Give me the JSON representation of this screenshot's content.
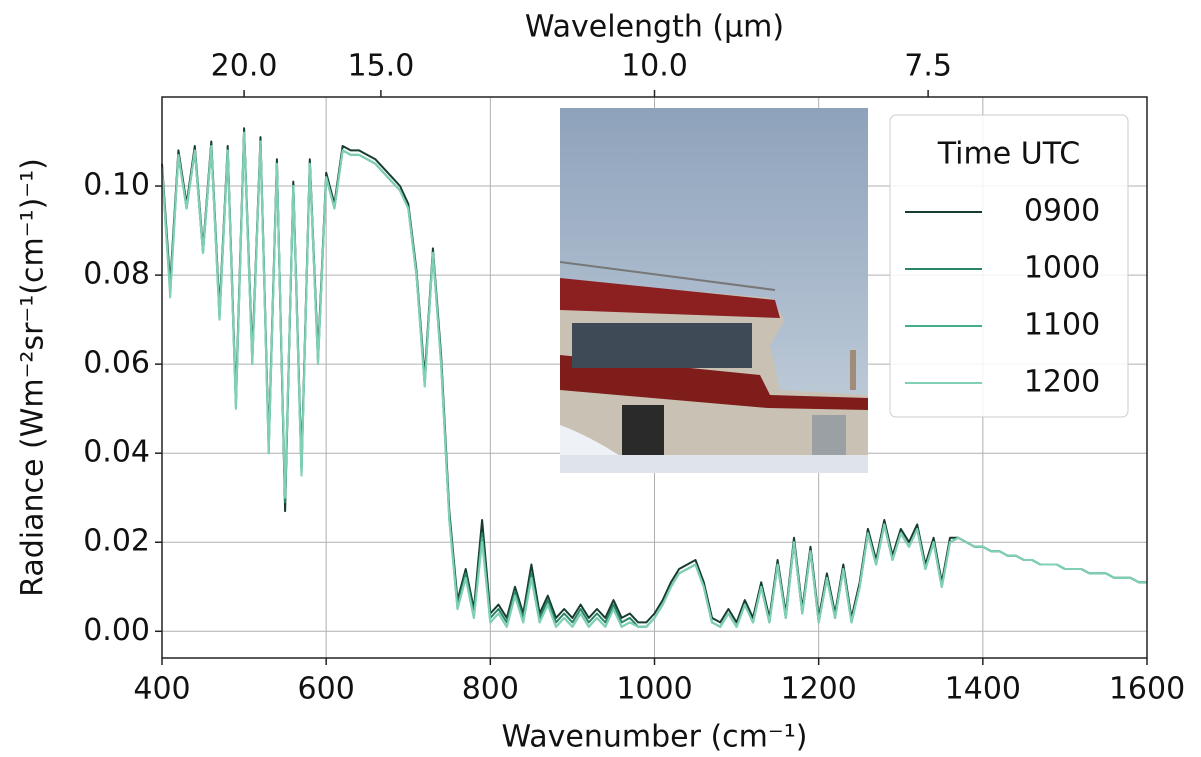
{
  "chart_data": {
    "type": "line",
    "xlabel": "Wavenumber (cm⁻¹)",
    "ylabel": "Radiance (Wm⁻²sr⁻¹(cm⁻¹)⁻¹)",
    "x2label": "Wavelength (μm)",
    "x2_scale": "reciprocal",
    "legend_title": "Time UTC",
    "legend": "upper right",
    "grid": true,
    "xlim": [
      400,
      1600
    ],
    "xticks": [
      400,
      600,
      800,
      1000,
      1200,
      1400,
      1600
    ],
    "x2lim": [
      25,
      6.25
    ],
    "x2ticks": [
      {
        "value": 20,
        "label": "20.0"
      },
      {
        "value": 15,
        "label": "15.0"
      },
      {
        "value": 10,
        "label": "10.0"
      },
      {
        "value": 7.5,
        "label": "7.5"
      }
    ],
    "ylim": [
      -0.006,
      0.12
    ],
    "yticks": [
      {
        "value": 0,
        "label": "0.00"
      },
      {
        "value": 0.02,
        "label": "0.02"
      },
      {
        "value": 0.04,
        "label": "0.04"
      },
      {
        "value": 0.06,
        "label": "0.06"
      },
      {
        "value": 0.08,
        "label": "0.08"
      },
      {
        "value": 0.1,
        "label": "0.10"
      }
    ],
    "x": [
      400,
      410,
      420,
      430,
      440,
      450,
      460,
      470,
      480,
      490,
      500,
      510,
      520,
      530,
      540,
      550,
      560,
      570,
      580,
      590,
      600,
      610,
      620,
      630,
      640,
      650,
      660,
      670,
      680,
      690,
      700,
      710,
      720,
      730,
      740,
      750,
      760,
      770,
      780,
      790,
      800,
      810,
      820,
      830,
      840,
      850,
      860,
      870,
      880,
      890,
      900,
      910,
      920,
      930,
      940,
      950,
      960,
      970,
      980,
      990,
      1000,
      1010,
      1020,
      1030,
      1040,
      1050,
      1060,
      1070,
      1080,
      1090,
      1100,
      1110,
      1120,
      1130,
      1140,
      1150,
      1160,
      1170,
      1180,
      1190,
      1200,
      1210,
      1220,
      1230,
      1240,
      1250,
      1260,
      1270,
      1280,
      1290,
      1300,
      1310,
      1320,
      1330,
      1340,
      1350,
      1360,
      1370,
      1380,
      1390,
      1400,
      1410,
      1420,
      1430,
      1440,
      1450,
      1460,
      1470,
      1480,
      1490,
      1500,
      1510,
      1520,
      1530,
      1540,
      1550,
      1560,
      1570,
      1580,
      1590,
      1600
    ],
    "series": [
      {
        "name": "0900",
        "color": "#173d31",
        "values": [
          0.105,
          0.078,
          0.108,
          0.096,
          0.109,
          0.086,
          0.11,
          0.072,
          0.109,
          0.052,
          0.113,
          0.062,
          0.111,
          0.042,
          0.106,
          0.027,
          0.101,
          0.037,
          0.106,
          0.062,
          0.103,
          0.096,
          0.109,
          0.108,
          0.108,
          0.107,
          0.106,
          0.104,
          0.102,
          0.1,
          0.096,
          0.081,
          0.057,
          0.086,
          0.062,
          0.027,
          0.007,
          0.014,
          0.005,
          0.025,
          0.004,
          0.006,
          0.003,
          0.01,
          0.004,
          0.015,
          0.004,
          0.008,
          0.003,
          0.005,
          0.003,
          0.006,
          0.003,
          0.005,
          0.003,
          0.007,
          0.003,
          0.004,
          0.002,
          0.002,
          0.004,
          0.007,
          0.011,
          0.014,
          0.015,
          0.016,
          0.011,
          0.003,
          0.002,
          0.005,
          0.002,
          0.007,
          0.003,
          0.011,
          0.003,
          0.016,
          0.004,
          0.021,
          0.005,
          0.019,
          0.003,
          0.013,
          0.004,
          0.015,
          0.003,
          0.011,
          0.023,
          0.016,
          0.025,
          0.017,
          0.023,
          0.02,
          0.024,
          0.015,
          0.021,
          0.011,
          0.021,
          0.021,
          0.02,
          0.019,
          0.019,
          0.018,
          0.018,
          0.017,
          0.017,
          0.016,
          0.016,
          0.015,
          0.015,
          0.015,
          0.014,
          0.014,
          0.014,
          0.013,
          0.013,
          0.013,
          0.012,
          0.012,
          0.012,
          0.011,
          0.011
        ]
      },
      {
        "name": "1000",
        "color": "#2a8466",
        "values": [
          0.104,
          0.077,
          0.107,
          0.095,
          0.108,
          0.085,
          0.109,
          0.071,
          0.108,
          0.051,
          0.112,
          0.061,
          0.11,
          0.041,
          0.105,
          0.029,
          0.1,
          0.036,
          0.105,
          0.061,
          0.102,
          0.095,
          0.108,
          0.107,
          0.107,
          0.106,
          0.105,
          0.103,
          0.101,
          0.099,
          0.095,
          0.08,
          0.056,
          0.085,
          0.061,
          0.026,
          0.006,
          0.013,
          0.004,
          0.022,
          0.003,
          0.005,
          0.002,
          0.009,
          0.003,
          0.013,
          0.003,
          0.007,
          0.002,
          0.004,
          0.002,
          0.005,
          0.002,
          0.004,
          0.002,
          0.006,
          0.002,
          0.003,
          0.001,
          0.001,
          0.003,
          0.006,
          0.01,
          0.013,
          0.014,
          0.015,
          0.01,
          0.002,
          0.001,
          0.004,
          0.001,
          0.006,
          0.002,
          0.01,
          0.002,
          0.015,
          0.003,
          0.02,
          0.004,
          0.018,
          0.002,
          0.012,
          0.003,
          0.014,
          0.002,
          0.01,
          0.022,
          0.015,
          0.024,
          0.016,
          0.022,
          0.019,
          0.023,
          0.014,
          0.02,
          0.01,
          0.02,
          0.021,
          0.02,
          0.019,
          0.019,
          0.018,
          0.018,
          0.017,
          0.017,
          0.016,
          0.016,
          0.015,
          0.015,
          0.015,
          0.014,
          0.014,
          0.014,
          0.013,
          0.013,
          0.013,
          0.012,
          0.012,
          0.012,
          0.011,
          0.011
        ]
      },
      {
        "name": "1100",
        "color": "#45ad87",
        "values": [
          0.104,
          0.076,
          0.107,
          0.095,
          0.108,
          0.085,
          0.109,
          0.07,
          0.108,
          0.05,
          0.112,
          0.06,
          0.11,
          0.04,
          0.105,
          0.03,
          0.1,
          0.035,
          0.105,
          0.06,
          0.102,
          0.095,
          0.108,
          0.107,
          0.107,
          0.106,
          0.105,
          0.103,
          0.101,
          0.099,
          0.095,
          0.08,
          0.055,
          0.085,
          0.06,
          0.025,
          0.005,
          0.012,
          0.003,
          0.021,
          0.002,
          0.004,
          0.001,
          0.008,
          0.002,
          0.012,
          0.002,
          0.006,
          0.001,
          0.003,
          0.001,
          0.004,
          0.001,
          0.003,
          0.001,
          0.005,
          0.001,
          0.002,
          0.001,
          0.001,
          0.003,
          0.006,
          0.01,
          0.013,
          0.014,
          0.015,
          0.01,
          0.002,
          0.001,
          0.004,
          0.001,
          0.006,
          0.002,
          0.01,
          0.002,
          0.015,
          0.003,
          0.02,
          0.004,
          0.018,
          0.002,
          0.012,
          0.003,
          0.014,
          0.002,
          0.01,
          0.022,
          0.015,
          0.024,
          0.016,
          0.022,
          0.019,
          0.023,
          0.014,
          0.02,
          0.01,
          0.02,
          0.021,
          0.02,
          0.019,
          0.019,
          0.018,
          0.018,
          0.017,
          0.017,
          0.016,
          0.016,
          0.015,
          0.015,
          0.015,
          0.014,
          0.014,
          0.014,
          0.013,
          0.013,
          0.013,
          0.012,
          0.012,
          0.012,
          0.011,
          0.011
        ]
      },
      {
        "name": "1200",
        "color": "#7fd0b4",
        "values": [
          0.104,
          0.075,
          0.107,
          0.095,
          0.108,
          0.085,
          0.109,
          0.07,
          0.108,
          0.05,
          0.112,
          0.06,
          0.11,
          0.04,
          0.105,
          0.03,
          0.1,
          0.035,
          0.105,
          0.06,
          0.102,
          0.095,
          0.108,
          0.107,
          0.107,
          0.106,
          0.105,
          0.103,
          0.101,
          0.099,
          0.095,
          0.08,
          0.055,
          0.085,
          0.06,
          0.025,
          0.005,
          0.012,
          0.003,
          0.02,
          0.002,
          0.004,
          0.001,
          0.008,
          0.002,
          0.012,
          0.002,
          0.006,
          0.001,
          0.003,
          0.001,
          0.004,
          0.001,
          0.003,
          0.001,
          0.005,
          0.001,
          0.002,
          0.001,
          0.001,
          0.003,
          0.006,
          0.01,
          0.013,
          0.014,
          0.015,
          0.01,
          0.002,
          0.001,
          0.004,
          0.001,
          0.006,
          0.002,
          0.01,
          0.002,
          0.015,
          0.003,
          0.02,
          0.004,
          0.018,
          0.002,
          0.012,
          0.003,
          0.014,
          0.002,
          0.01,
          0.022,
          0.015,
          0.024,
          0.016,
          0.022,
          0.019,
          0.023,
          0.014,
          0.02,
          0.01,
          0.02,
          0.021,
          0.02,
          0.019,
          0.019,
          0.018,
          0.018,
          0.017,
          0.017,
          0.016,
          0.016,
          0.015,
          0.015,
          0.015,
          0.014,
          0.014,
          0.014,
          0.013,
          0.013,
          0.013,
          0.012,
          0.012,
          0.012,
          0.011,
          0.011
        ]
      }
    ]
  }
}
